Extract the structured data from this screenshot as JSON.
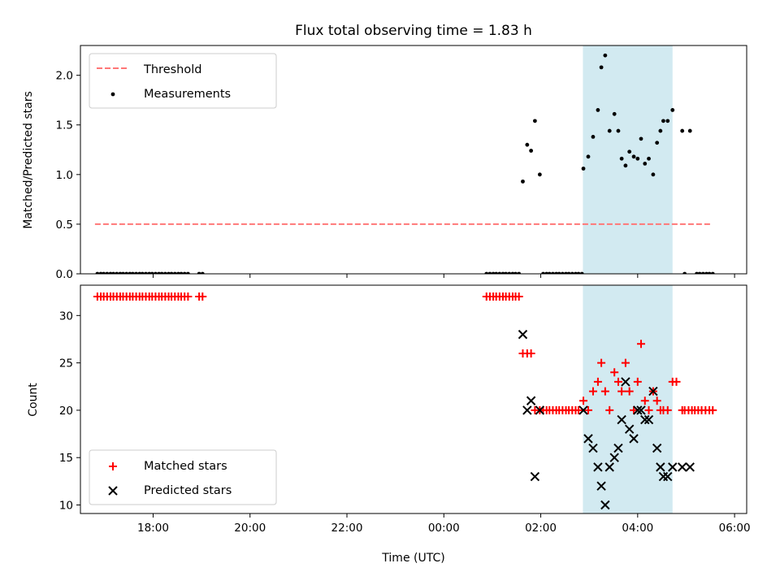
{
  "chart_data": {
    "title": "Flux total observing time = 1.83 h",
    "x_unit": "hours since 00:00 UTC",
    "xlabel": "Time (UTC)",
    "xlim": [
      -7.5,
      6.25
    ],
    "x_ticks": [
      {
        "value": -6,
        "label": "18:00"
      },
      {
        "value": -4,
        "label": "20:00"
      },
      {
        "value": -2,
        "label": "22:00"
      },
      {
        "value": 0,
        "label": "00:00"
      },
      {
        "value": 2,
        "label": "02:00"
      },
      {
        "value": 4,
        "label": "04:00"
      },
      {
        "value": 6,
        "label": "06:00"
      }
    ],
    "shaded_interval": {
      "start": 2.87,
      "end": 4.72,
      "color": "#add8e6"
    },
    "panels": [
      {
        "type": "scatter",
        "ylabel": "Matched/Predicted stars",
        "ylim": [
          0,
          2.3
        ],
        "y_ticks": [
          {
            "value": 0,
            "label": "0.0"
          },
          {
            "value": 0.5,
            "label": "0.5"
          },
          {
            "value": 1.0,
            "label": "1.0"
          },
          {
            "value": 1.5,
            "label": "1.5"
          },
          {
            "value": 2.0,
            "label": "2.0"
          }
        ],
        "legend": [
          "Threshold",
          "Measurements"
        ],
        "threshold": {
          "name": "Threshold",
          "value": 0.5,
          "x_range": [
            -7.2,
            5.5
          ],
          "color": "#ff7777"
        },
        "series": [
          {
            "name": "Measurements",
            "color": "#000000",
            "points": [
              [
                -7.15,
                0
              ],
              [
                -7.08,
                0
              ],
              [
                -7.02,
                0
              ],
              [
                -6.95,
                0
              ],
              [
                -6.88,
                0
              ],
              [
                -6.82,
                0
              ],
              [
                -6.75,
                0
              ],
              [
                -6.68,
                0
              ],
              [
                -6.62,
                0
              ],
              [
                -6.55,
                0
              ],
              [
                -6.48,
                0
              ],
              [
                -6.42,
                0
              ],
              [
                -6.35,
                0
              ],
              [
                -6.28,
                0
              ],
              [
                -6.22,
                0
              ],
              [
                -6.15,
                0
              ],
              [
                -6.08,
                0
              ],
              [
                -6.02,
                0
              ],
              [
                -5.95,
                0
              ],
              [
                -5.88,
                0
              ],
              [
                -5.82,
                0
              ],
              [
                -5.75,
                0
              ],
              [
                -5.68,
                0
              ],
              [
                -5.62,
                0
              ],
              [
                -5.55,
                0
              ],
              [
                -5.48,
                0
              ],
              [
                -5.42,
                0
              ],
              [
                -5.35,
                0
              ],
              [
                -5.28,
                0
              ],
              [
                -5.05,
                0
              ],
              [
                -4.98,
                0
              ],
              [
                0.88,
                0
              ],
              [
                0.95,
                0
              ],
              [
                1.02,
                0
              ],
              [
                1.08,
                0
              ],
              [
                1.15,
                0
              ],
              [
                1.22,
                0
              ],
              [
                1.28,
                0
              ],
              [
                1.35,
                0
              ],
              [
                1.42,
                0
              ],
              [
                1.48,
                0
              ],
              [
                1.55,
                0
              ],
              [
                1.63,
                0.93
              ],
              [
                1.72,
                1.3
              ],
              [
                1.8,
                1.24
              ],
              [
                1.88,
                1.54
              ],
              [
                1.98,
                1.0
              ],
              [
                2.05,
                0
              ],
              [
                2.12,
                0
              ],
              [
                2.18,
                0
              ],
              [
                2.25,
                0
              ],
              [
                2.32,
                0
              ],
              [
                2.38,
                0
              ],
              [
                2.45,
                0
              ],
              [
                2.52,
                0
              ],
              [
                2.58,
                0
              ],
              [
                2.65,
                0
              ],
              [
                2.72,
                0
              ],
              [
                2.78,
                0
              ],
              [
                2.85,
                0
              ],
              [
                2.88,
                1.06
              ],
              [
                2.98,
                1.18
              ],
              [
                3.08,
                1.38
              ],
              [
                3.18,
                1.65
              ],
              [
                3.25,
                2.08
              ],
              [
                3.33,
                2.2
              ],
              [
                3.42,
                1.44
              ],
              [
                3.52,
                1.61
              ],
              [
                3.6,
                1.44
              ],
              [
                3.67,
                1.16
              ],
              [
                3.75,
                1.09
              ],
              [
                3.83,
                1.23
              ],
              [
                3.92,
                1.18
              ],
              [
                4.0,
                1.16
              ],
              [
                4.07,
                1.36
              ],
              [
                4.15,
                1.11
              ],
              [
                4.23,
                1.16
              ],
              [
                4.32,
                1.0
              ],
              [
                4.4,
                1.32
              ],
              [
                4.47,
                1.44
              ],
              [
                4.53,
                1.54
              ],
              [
                4.62,
                1.54
              ],
              [
                4.72,
                1.65
              ],
              [
                4.92,
                1.44
              ],
              [
                5.08,
                1.44
              ],
              [
                4.97,
                0
              ],
              [
                5.22,
                0
              ],
              [
                5.28,
                0
              ],
              [
                5.35,
                0
              ],
              [
                5.42,
                0
              ],
              [
                5.48,
                0
              ],
              [
                5.55,
                0
              ]
            ]
          }
        ]
      },
      {
        "type": "scatter",
        "ylabel": "Count",
        "ylim": [
          9.1,
          33.2
        ],
        "y_ticks": [
          {
            "value": 10,
            "label": "10"
          },
          {
            "value": 15,
            "label": "15"
          },
          {
            "value": 20,
            "label": "20"
          },
          {
            "value": 25,
            "label": "25"
          },
          {
            "value": 30,
            "label": "30"
          }
        ],
        "legend": [
          "Matched stars",
          "Predicted stars"
        ],
        "series": [
          {
            "name": "Matched stars",
            "marker": "plus",
            "color": "#ff0000",
            "points": [
              [
                -7.15,
                32
              ],
              [
                -7.08,
                32
              ],
              [
                -7.02,
                32
              ],
              [
                -6.95,
                32
              ],
              [
                -6.88,
                32
              ],
              [
                -6.82,
                32
              ],
              [
                -6.75,
                32
              ],
              [
                -6.68,
                32
              ],
              [
                -6.62,
                32
              ],
              [
                -6.55,
                32
              ],
              [
                -6.48,
                32
              ],
              [
                -6.42,
                32
              ],
              [
                -6.35,
                32
              ],
              [
                -6.28,
                32
              ],
              [
                -6.22,
                32
              ],
              [
                -6.15,
                32
              ],
              [
                -6.08,
                32
              ],
              [
                -6.02,
                32
              ],
              [
                -5.95,
                32
              ],
              [
                -5.88,
                32
              ],
              [
                -5.82,
                32
              ],
              [
                -5.75,
                32
              ],
              [
                -5.68,
                32
              ],
              [
                -5.62,
                32
              ],
              [
                -5.55,
                32
              ],
              [
                -5.48,
                32
              ],
              [
                -5.42,
                32
              ],
              [
                -5.35,
                32
              ],
              [
                -5.28,
                32
              ],
              [
                -5.05,
                32
              ],
              [
                -4.98,
                32
              ],
              [
                0.88,
                32
              ],
              [
                0.95,
                32
              ],
              [
                1.02,
                32
              ],
              [
                1.08,
                32
              ],
              [
                1.15,
                32
              ],
              [
                1.22,
                32
              ],
              [
                1.28,
                32
              ],
              [
                1.35,
                32
              ],
              [
                1.42,
                32
              ],
              [
                1.48,
                32
              ],
              [
                1.55,
                32
              ],
              [
                1.63,
                26
              ],
              [
                1.72,
                26
              ],
              [
                1.8,
                26
              ],
              [
                1.88,
                20
              ],
              [
                1.98,
                20
              ],
              [
                2.05,
                20
              ],
              [
                2.12,
                20
              ],
              [
                2.18,
                20
              ],
              [
                2.25,
                20
              ],
              [
                2.32,
                20
              ],
              [
                2.38,
                20
              ],
              [
                2.45,
                20
              ],
              [
                2.52,
                20
              ],
              [
                2.58,
                20
              ],
              [
                2.65,
                20
              ],
              [
                2.72,
                20
              ],
              [
                2.78,
                20
              ],
              [
                2.88,
                21
              ],
              [
                2.98,
                20
              ],
              [
                3.08,
                22
              ],
              [
                3.18,
                23
              ],
              [
                3.25,
                25
              ],
              [
                3.33,
                22
              ],
              [
                3.42,
                20
              ],
              [
                3.52,
                24
              ],
              [
                3.6,
                23
              ],
              [
                3.67,
                22
              ],
              [
                3.75,
                25
              ],
              [
                3.83,
                22
              ],
              [
                3.92,
                20
              ],
              [
                4.0,
                23
              ],
              [
                4.07,
                27
              ],
              [
                4.15,
                21
              ],
              [
                4.23,
                20
              ],
              [
                4.32,
                22
              ],
              [
                4.4,
                21
              ],
              [
                4.47,
                20
              ],
              [
                4.53,
                20
              ],
              [
                4.62,
                20
              ],
              [
                4.72,
                23
              ],
              [
                4.8,
                23
              ],
              [
                4.92,
                20
              ],
              [
                4.97,
                20
              ],
              [
                5.05,
                20
              ],
              [
                5.12,
                20
              ],
              [
                5.18,
                20
              ],
              [
                5.25,
                20
              ],
              [
                5.32,
                20
              ],
              [
                5.4,
                20
              ],
              [
                5.48,
                20
              ],
              [
                5.55,
                20
              ]
            ]
          },
          {
            "name": "Predicted stars",
            "marker": "x",
            "color": "#000000",
            "points": [
              [
                1.63,
                28
              ],
              [
                1.72,
                20
              ],
              [
                1.8,
                21
              ],
              [
                1.88,
                13
              ],
              [
                1.98,
                20
              ],
              [
                2.88,
                20
              ],
              [
                2.98,
                17
              ],
              [
                3.08,
                16
              ],
              [
                3.18,
                14
              ],
              [
                3.25,
                12
              ],
              [
                3.33,
                10
              ],
              [
                3.42,
                14
              ],
              [
                3.52,
                15
              ],
              [
                3.6,
                16
              ],
              [
                3.67,
                19
              ],
              [
                3.75,
                23
              ],
              [
                3.83,
                18
              ],
              [
                3.92,
                17
              ],
              [
                4.0,
                20
              ],
              [
                4.07,
                20
              ],
              [
                4.15,
                19
              ],
              [
                4.23,
                19
              ],
              [
                4.32,
                22
              ],
              [
                4.4,
                16
              ],
              [
                4.47,
                14
              ],
              [
                4.53,
                13
              ],
              [
                4.62,
                13
              ],
              [
                4.72,
                14
              ],
              [
                4.92,
                14
              ],
              [
                5.08,
                14
              ]
            ]
          }
        ]
      }
    ]
  }
}
